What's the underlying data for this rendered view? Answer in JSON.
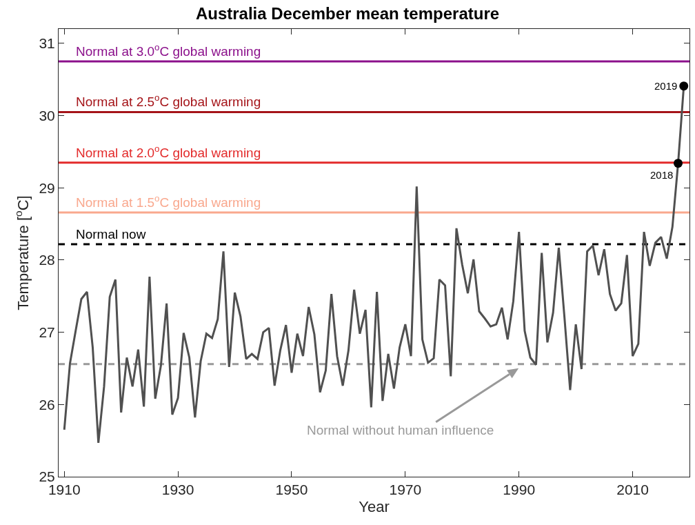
{
  "chart_data": {
    "type": "line",
    "title": "Australia December mean temperature",
    "xlabel": "Year",
    "ylabel": "Temperature [$^{o}$C]",
    "xlim": [
      1909,
      2020
    ],
    "xticks": [
      1910,
      1930,
      1950,
      1970,
      1990,
      2010
    ],
    "ylim": [
      25,
      31.2
    ],
    "yticks": [
      25,
      26,
      27,
      28,
      29,
      30,
      31
    ],
    "grid": false,
    "series": [
      {
        "color": "#505050",
        "x": [
          1910,
          1911,
          1912,
          1913,
          1914,
          1915,
          1916,
          1917,
          1918,
          1919,
          1920,
          1921,
          1922,
          1923,
          1924,
          1925,
          1926,
          1927,
          1928,
          1929,
          1930,
          1931,
          1932,
          1933,
          1934,
          1935,
          1936,
          1937,
          1938,
          1939,
          1940,
          1941,
          1942,
          1943,
          1944,
          1945,
          1946,
          1947,
          1948,
          1949,
          1950,
          1951,
          1952,
          1953,
          1954,
          1955,
          1956,
          1957,
          1958,
          1959,
          1960,
          1961,
          1962,
          1963,
          1964,
          1965,
          1966,
          1967,
          1968,
          1969,
          1970,
          1971,
          1972,
          1973,
          1974,
          1975,
          1976,
          1977,
          1978,
          1979,
          1980,
          1981,
          1982,
          1983,
          1984,
          1985,
          1986,
          1987,
          1988,
          1989,
          1990,
          1991,
          1992,
          1993,
          1994,
          1995,
          1996,
          1997,
          1998,
          1999,
          2000,
          2001,
          2002,
          2003,
          2004,
          2005,
          2006,
          2007,
          2008,
          2009,
          2010,
          2011,
          2012,
          2013,
          2014,
          2015,
          2016,
          2017,
          2018,
          2019
        ],
        "values": [
          25.65,
          26.57,
          27.02,
          27.46,
          27.56,
          26.79,
          25.47,
          26.25,
          27.49,
          27.73,
          25.89,
          26.65,
          26.25,
          26.76,
          25.97,
          27.77,
          26.08,
          26.54,
          27.4,
          25.86,
          26.09,
          26.99,
          26.65,
          25.82,
          26.6,
          26.98,
          26.92,
          27.18,
          28.12,
          26.52,
          27.55,
          27.22,
          26.63,
          26.7,
          26.63,
          27.0,
          27.06,
          26.26,
          26.75,
          27.1,
          26.44,
          26.98,
          26.67,
          27.35,
          26.97,
          26.17,
          26.47,
          27.53,
          26.67,
          26.26,
          26.75,
          27.59,
          26.98,
          27.31,
          25.96,
          27.56,
          26.05,
          26.7,
          26.22,
          26.79,
          27.11,
          26.67,
          29.02,
          26.9,
          26.58,
          26.64,
          27.73,
          27.65,
          26.39,
          28.44,
          27.94,
          27.54,
          28.01,
          27.29,
          27.19,
          27.08,
          27.11,
          27.34,
          26.9,
          27.43,
          28.39,
          27.02,
          26.65,
          26.55,
          28.1,
          26.86,
          27.27,
          28.17,
          27.21,
          26.2,
          27.11,
          26.49,
          28.12,
          28.2,
          27.79,
          28.15,
          27.53,
          27.3,
          27.4,
          28.07,
          26.67,
          26.84,
          28.39,
          27.92,
          28.24,
          28.32,
          28.02,
          28.46,
          29.34,
          30.41
        ]
      },
      {
        "type": "scatter",
        "color": "#000000",
        "marker": "circle",
        "x": [
          2018,
          2019
        ],
        "values": [
          29.34,
          30.41
        ]
      }
    ],
    "ref_lines": [
      {
        "axis": "y",
        "value": 30.75,
        "label": "Normal at 3.0$^{o}$C global warming",
        "color": "#8b108b",
        "line_style": "solid"
      },
      {
        "axis": "y",
        "value": 30.05,
        "label": "Normal at 2.5$^{o}$C global warming",
        "color": "#a51419",
        "line_style": "solid"
      },
      {
        "axis": "y",
        "value": 29.35,
        "label": "Normal at 2.0$^{o}$C global warming",
        "color": "#e32b2b",
        "line_style": "solid"
      },
      {
        "axis": "y",
        "value": 28.66,
        "label": "Normal at 1.5$^{o}$C global warming",
        "color": "#f9a88e",
        "line_style": "solid"
      },
      {
        "axis": "y",
        "value": 28.22,
        "label": "Normal now",
        "color": "#000000",
        "line_style": "dashed"
      },
      {
        "axis": "y",
        "value": 26.56,
        "label": "Normal without human influence",
        "color": "#999999",
        "line_style": "dashed"
      }
    ],
    "annotations": [
      {
        "text": "2019",
        "x": 2019,
        "y": 30.41
      },
      {
        "text": "2018",
        "x": 2018,
        "y": 29.34
      }
    ]
  }
}
